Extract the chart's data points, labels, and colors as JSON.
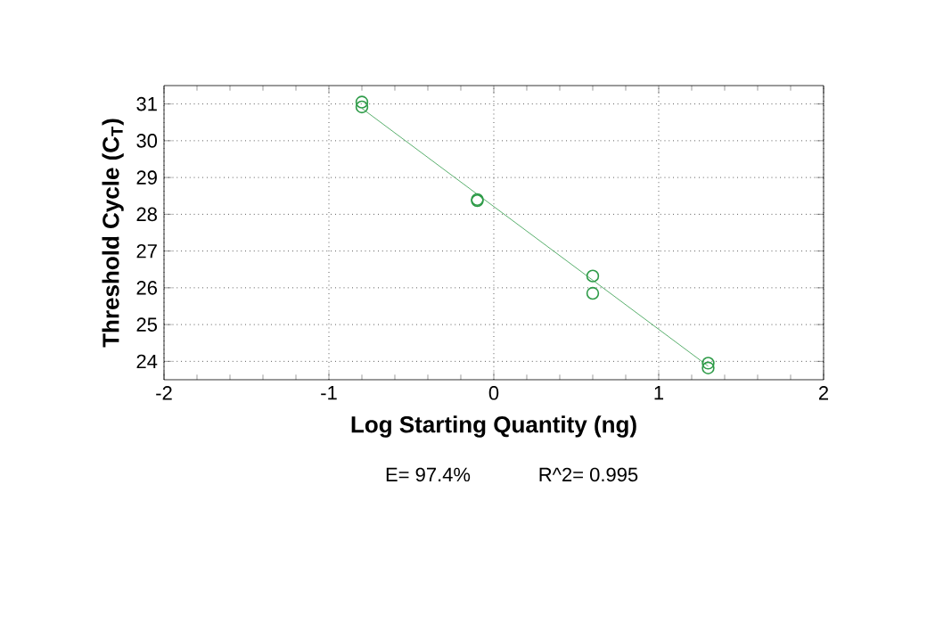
{
  "chart_data": {
    "type": "scatter",
    "xlabel": "Log Starting Quantity (ng)",
    "ylabel": "Threshold Cycle (C$_{T}$)",
    "series": [
      {
        "color": "#2e9b48",
        "x": [
          -0.8,
          -0.8,
          -0.1,
          -0.1,
          0.6,
          0.6,
          1.3,
          1.3
        ],
        "values": [
          31.05,
          30.92,
          28.4,
          28.37,
          26.32,
          25.85,
          23.95,
          23.82
        ],
        "marker": "circle"
      },
      {
        "type": "line",
        "color": "#2e9b48",
        "x": [
          -0.8,
          1.3
        ],
        "values": [
          30.88,
          23.87
        ],
        "marker": "none",
        "line_style": "solid"
      }
    ],
    "xlim": [
      -2,
      2
    ],
    "ylim": [
      23.5,
      31.5
    ],
    "xticks": [
      -2,
      -1,
      0,
      1,
      2
    ],
    "yticks": [
      24,
      25,
      26,
      27,
      28,
      29,
      30,
      31
    ],
    "grid": true,
    "annotations": [
      "E= 97.4%",
      "R^2= 0.995"
    ]
  }
}
